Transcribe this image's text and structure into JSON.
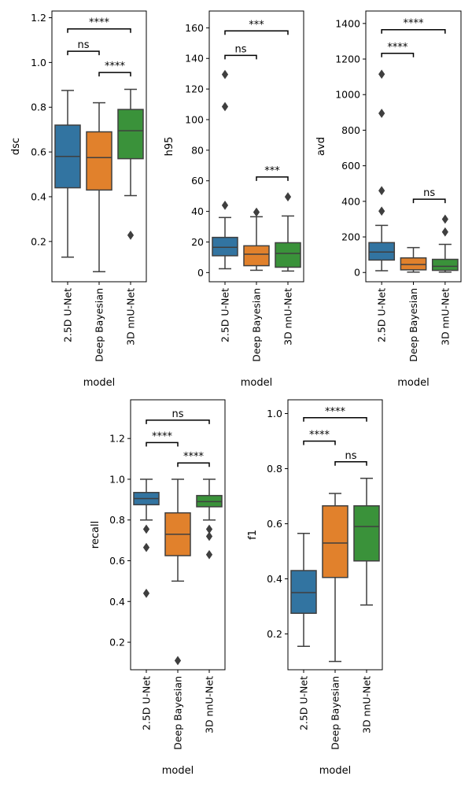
{
  "chart_data": [
    {
      "type": "box",
      "xlabel": "model",
      "ylabel": "dsc",
      "ylim": [
        0.02,
        1.23
      ],
      "yticks": [
        0.2,
        0.4,
        0.6,
        0.8,
        1.0,
        1.2
      ],
      "ytick_labels": [
        "0.2",
        "0.4",
        "0.6",
        "0.8",
        "1.0",
        "1.2"
      ],
      "categories": [
        "2.5D U-Net",
        "Deep Bayesian",
        "3D nnU-Net"
      ],
      "colors": [
        "#3274a1",
        "#e1812c",
        "#3a923a"
      ],
      "boxes": [
        {
          "q1": 0.44,
          "median": 0.58,
          "q3": 0.72,
          "whisker_low": 0.13,
          "whisker_high": 0.875,
          "outliers": []
        },
        {
          "q1": 0.43,
          "median": 0.575,
          "q3": 0.69,
          "whisker_low": 0.065,
          "whisker_high": 0.82,
          "outliers": []
        },
        {
          "q1": 0.57,
          "median": 0.695,
          "q3": 0.79,
          "whisker_low": 0.405,
          "whisker_high": 0.88,
          "outliers": [
            0.228
          ]
        }
      ],
      "annotations": [
        {
          "from": 0,
          "to": 1,
          "y": 1.05,
          "label": "ns"
        },
        {
          "from": 1,
          "to": 2,
          "y": 0.955,
          "label": "****"
        },
        {
          "from": 0,
          "to": 2,
          "y": 1.15,
          "label": "****"
        }
      ]
    },
    {
      "type": "box",
      "xlabel": "model",
      "ylabel": "h95",
      "ylim": [
        -6,
        171
      ],
      "yticks": [
        0,
        20,
        40,
        60,
        80,
        100,
        120,
        140,
        160
      ],
      "ytick_labels": [
        "0",
        "20",
        "40",
        "60",
        "80",
        "100",
        "120",
        "140",
        "160"
      ],
      "categories": [
        "2.5D U-Net",
        "Deep Bayesian",
        "3D nnU-Net"
      ],
      "colors": [
        "#3274a1",
        "#e1812c",
        "#3a923a"
      ],
      "boxes": [
        {
          "q1": 11,
          "median": 16.5,
          "q3": 23,
          "whisker_low": 2.5,
          "whisker_high": 36,
          "outliers": [
            44,
            108.5,
            129.5
          ]
        },
        {
          "q1": 4.5,
          "median": 12,
          "q3": 17.5,
          "whisker_low": 1.5,
          "whisker_high": 36.5,
          "outliers": [
            39.5
          ]
        },
        {
          "q1": 3.5,
          "median": 12.5,
          "q3": 19.5,
          "whisker_low": 1,
          "whisker_high": 37,
          "outliers": [
            49.5
          ]
        }
      ],
      "annotations": [
        {
          "from": 0,
          "to": 1,
          "y": 142,
          "label": "ns"
        },
        {
          "from": 1,
          "to": 2,
          "y": 62.5,
          "label": "***"
        },
        {
          "from": 0,
          "to": 2,
          "y": 158,
          "label": "***"
        }
      ]
    },
    {
      "type": "box",
      "xlabel": "model",
      "ylabel": "avd",
      "ylim": [
        -52,
        1470
      ],
      "yticks": [
        0,
        200,
        400,
        600,
        800,
        1000,
        1200,
        1400
      ],
      "ytick_labels": [
        "0",
        "200",
        "400",
        "600",
        "800",
        "1000",
        "1200",
        "1400"
      ],
      "categories": [
        "2.5D U-Net",
        "Deep Bayesian",
        "3D nnU-Net"
      ],
      "colors": [
        "#3274a1",
        "#e1812c",
        "#3a923a"
      ],
      "boxes": [
        {
          "q1": 70,
          "median": 115,
          "q3": 168,
          "whisker_low": 10,
          "whisker_high": 265,
          "outliers": [
            345,
            460,
            895,
            1115
          ]
        },
        {
          "q1": 15,
          "median": 45,
          "q3": 82,
          "whisker_low": 2,
          "whisker_high": 140,
          "outliers": []
        },
        {
          "q1": 12,
          "median": 35,
          "q3": 74,
          "whisker_low": 2,
          "whisker_high": 158,
          "outliers": [
            228,
            300
          ]
        }
      ],
      "annotations": [
        {
          "from": 0,
          "to": 1,
          "y": 1232,
          "label": "****"
        },
        {
          "from": 1,
          "to": 2,
          "y": 412,
          "label": "ns"
        },
        {
          "from": 0,
          "to": 2,
          "y": 1365,
          "label": "****"
        }
      ]
    },
    {
      "type": "box",
      "xlabel": "model",
      "ylabel": "recall",
      "ylim": [
        0.065,
        1.39
      ],
      "yticks": [
        0.2,
        0.4,
        0.6,
        0.8,
        1.0,
        1.2
      ],
      "ytick_labels": [
        "0.2",
        "0.4",
        "0.6",
        "0.8",
        "1.0",
        "1.2"
      ],
      "categories": [
        "2.5D U-Net",
        "Deep Bayesian",
        "3D nnU-Net"
      ],
      "colors": [
        "#3274a1",
        "#e1812c",
        "#3a923a"
      ],
      "boxes": [
        {
          "q1": 0.875,
          "median": 0.905,
          "q3": 0.935,
          "whisker_low": 0.8,
          "whisker_high": 1.0,
          "outliers": [
            0.44,
            0.665,
            0.755
          ]
        },
        {
          "q1": 0.625,
          "median": 0.73,
          "q3": 0.835,
          "whisker_low": 0.5,
          "whisker_high": 1.0,
          "outliers": [
            0.11
          ]
        },
        {
          "q1": 0.865,
          "median": 0.89,
          "q3": 0.92,
          "whisker_low": 0.8,
          "whisker_high": 1.0,
          "outliers": [
            0.63,
            0.72,
            0.755
          ]
        }
      ],
      "annotations": [
        {
          "from": 0,
          "to": 1,
          "y": 1.18,
          "label": "****"
        },
        {
          "from": 1,
          "to": 2,
          "y": 1.08,
          "label": "****"
        },
        {
          "from": 0,
          "to": 2,
          "y": 1.29,
          "label": "ns"
        }
      ]
    },
    {
      "type": "box",
      "xlabel": "model",
      "ylabel": "f1",
      "ylim": [
        0.07,
        1.05
      ],
      "yticks": [
        0.2,
        0.4,
        0.6,
        0.8,
        1.0
      ],
      "ytick_labels": [
        "0.2",
        "0.4",
        "0.6",
        "0.8",
        "1.0"
      ],
      "categories": [
        "2.5D U-Net",
        "Deep Bayesian",
        "3D nnU-Net"
      ],
      "colors": [
        "#3274a1",
        "#e1812c",
        "#3a923a"
      ],
      "boxes": [
        {
          "q1": 0.275,
          "median": 0.35,
          "q3": 0.43,
          "whisker_low": 0.155,
          "whisker_high": 0.565,
          "outliers": []
        },
        {
          "q1": 0.405,
          "median": 0.53,
          "q3": 0.665,
          "whisker_low": 0.1,
          "whisker_high": 0.71,
          "outliers": []
        },
        {
          "q1": 0.465,
          "median": 0.59,
          "q3": 0.665,
          "whisker_low": 0.305,
          "whisker_high": 0.765,
          "outliers": []
        }
      ],
      "annotations": [
        {
          "from": 0,
          "to": 1,
          "y": 0.9,
          "label": "****"
        },
        {
          "from": 1,
          "to": 2,
          "y": 0.825,
          "label": "ns"
        },
        {
          "from": 0,
          "to": 2,
          "y": 0.985,
          "label": "****"
        }
      ]
    }
  ]
}
